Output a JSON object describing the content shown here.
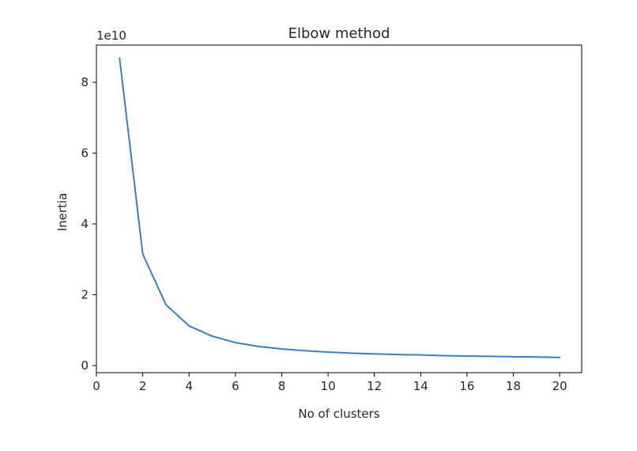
{
  "chart_data": {
    "type": "line",
    "title": "Elbow method",
    "xlabel": "No of clusters",
    "ylabel": "Inertia",
    "y_offset_label": "1e10",
    "y_scale_factor": 10000000000,
    "xlim": [
      0,
      20.95
    ],
    "ylim": [
      -0.2,
      9.05
    ],
    "xticks": [
      0,
      2,
      4,
      6,
      8,
      10,
      12,
      14,
      16,
      18,
      20
    ],
    "xtick_labels": [
      "0",
      "2",
      "4",
      "6",
      "8",
      "10",
      "12",
      "14",
      "16",
      "18",
      "20"
    ],
    "yticks": [
      0,
      2,
      4,
      6,
      8
    ],
    "ytick_labels": [
      "0",
      "2",
      "4",
      "6",
      "8"
    ],
    "grid": false,
    "series": [
      {
        "color": "#3a7fc1",
        "x": [
          1,
          2,
          3,
          4,
          5,
          6,
          7,
          8,
          9,
          10,
          11,
          12,
          13,
          14,
          15,
          16,
          17,
          18,
          19,
          20
        ],
        "y": [
          8.68,
          3.15,
          1.72,
          1.12,
          0.83,
          0.65,
          0.54,
          0.47,
          0.42,
          0.38,
          0.35,
          0.33,
          0.31,
          0.3,
          0.28,
          0.27,
          0.26,
          0.25,
          0.24,
          0.23
        ]
      }
    ]
  }
}
